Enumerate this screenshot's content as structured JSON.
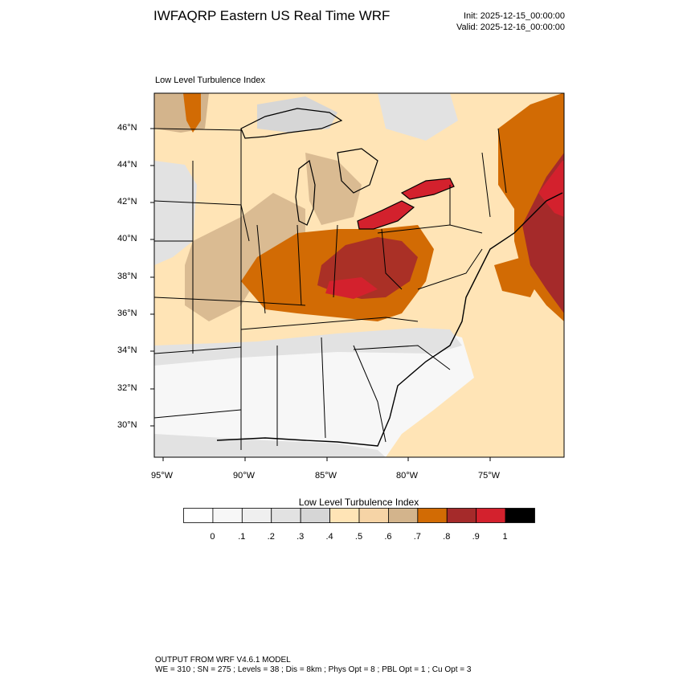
{
  "header": {
    "title": "IWFAQRP Eastern US Real Time WRF",
    "init": "Init: 2025-12-15_00:00:00",
    "valid": "Valid: 2025-12-16_00:00:00"
  },
  "map": {
    "subtitle": "Low Level Turbulence Index",
    "region": "Eastern United States",
    "lat_labels": [
      "46°N",
      "44°N",
      "42°N",
      "40°N",
      "38°N",
      "36°N",
      "34°N",
      "32°N",
      "30°N"
    ],
    "lon_labels": [
      "95°W",
      "90°W",
      "85°W",
      "80°W",
      "75°W"
    ]
  },
  "colorbar": {
    "title": "Low Level Turbulence Index",
    "labels": [
      "0",
      ".1",
      ".2",
      ".3",
      ".4",
      ".5",
      ".6",
      ".7",
      ".8",
      ".9",
      "1"
    ],
    "colors": [
      "#ffffff",
      "#f7f7f7",
      "#efefef",
      "#e2e2e2",
      "#d6d6d6",
      "#ffe4b6",
      "#f6d4a6",
      "#d3b48c",
      "#d26b04",
      "#a52a2a",
      "#d3212d",
      "#000000"
    ]
  },
  "footer": {
    "line1": "OUTPUT FROM WRF V4.6.1 MODEL",
    "line2": "WE = 310 ; SN = 275 ; Levels = 38 ; Dis = 8km ; Phys Opt = 8 ; PBL Opt = 1 ; Cu Opt = 3"
  }
}
